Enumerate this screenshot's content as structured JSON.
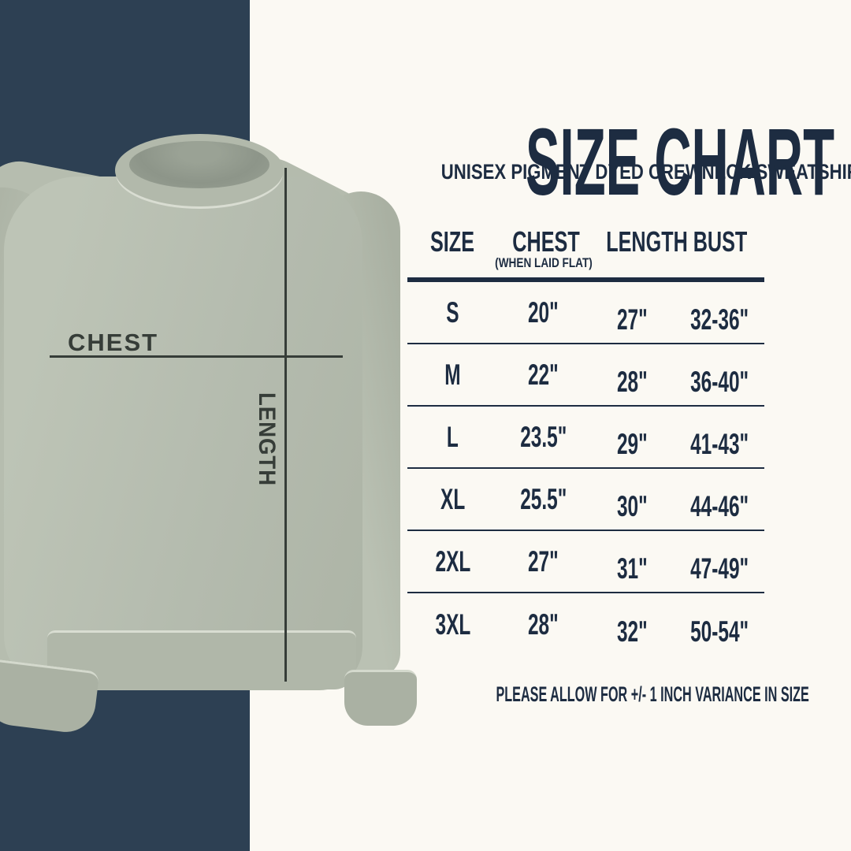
{
  "chart_data": {
    "type": "table",
    "title": "SIZE CHART",
    "subtitle": "UNISEX PIGMENT DYED CREWNECK SWEATSHIRT",
    "columns": [
      "SIZE",
      "CHEST",
      "LENGTH",
      "BUST"
    ],
    "chest_column_note": "(WHEN LAID FLAT)",
    "rows": [
      {
        "size": "S",
        "chest": "20\"",
        "length": "27\"",
        "bust": "32-36\""
      },
      {
        "size": "M",
        "chest": "22\"",
        "length": "28\"",
        "bust": "36-40\""
      },
      {
        "size": "L",
        "chest": "23.5\"",
        "length": "29\"",
        "bust": "41-43\""
      },
      {
        "size": "XL",
        "chest": "25.5\"",
        "length": "30\"",
        "bust": "44-46\""
      },
      {
        "size": "2XL",
        "chest": "27\"",
        "length": "31\"",
        "bust": "47-49\""
      },
      {
        "size": "3XL",
        "chest": "28\"",
        "length": "32\"",
        "bust": "50-54\""
      }
    ],
    "footnote": "PLEASE ALLOW FOR +/- 1 INCH VARIANCE IN SIZE",
    "units": "inches",
    "layout": "header row underlined thick, thin rules between rows, no outer border"
  },
  "annotations": {
    "chest_label": "CHEST",
    "length_label": "LENGTH"
  },
  "colors": {
    "navy_panel": "#2d4053",
    "text_navy": "#1d2c41",
    "sweatshirt_sage": "#b4bbae",
    "sweatshirt_shadow": "#8d9589",
    "seam_highlight": "#d9ddd2",
    "annotation_dark": "#363d38",
    "background": "#fbf9f3"
  }
}
